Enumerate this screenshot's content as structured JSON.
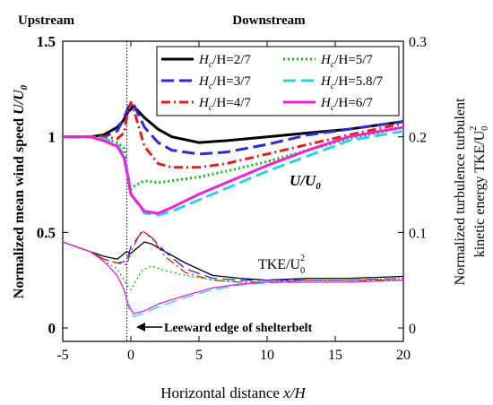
{
  "chart_data": {
    "type": "line",
    "region_labels": {
      "left": "Upstream",
      "right": "Downstream"
    },
    "xlabel": "Horizontal distance",
    "xlabel_var": "x/H",
    "xlim": [
      -5,
      20
    ],
    "xticks": [
      -5,
      0,
      5,
      10,
      15,
      20
    ],
    "ylabel_left": "Normalized mean wind speed",
    "ylabel_left_var": "U/U",
    "ylabel_left_sub": "0",
    "ylim_left": [
      -0.07,
      1.5
    ],
    "yticks_left": [
      0,
      0.5,
      1,
      1.5
    ],
    "ylabel_right_line1": "Normalized turbulence turbulent",
    "ylabel_right_line2": "kinetic energy TKE/U",
    "ylabel_right_sub": "0",
    "ylabel_right_sup": "2",
    "ylim_right": [
      -0.014,
      0.3
    ],
    "yticks_right": [
      0,
      0.1,
      0.2,
      0.3
    ],
    "annotations": {
      "u_label": "U/U",
      "u_label_sub": "0",
      "tke_label": "TKE/U",
      "tke_label_sub": "0",
      "tke_label_sup": "2",
      "edge_label": "Leeward edge of shelterbelt",
      "edge_x": -0.3
    },
    "grid": false,
    "legend_position": "top-right",
    "series": [
      {
        "name": "Hc/H=2/7",
        "name_main": "H",
        "name_sub": "c",
        "name_rest": "/H=2/7",
        "color": "#000000",
        "dash": "solid",
        "u": [
          [
            -5,
            1.0
          ],
          [
            -3,
            1.0
          ],
          [
            -2,
            1.01
          ],
          [
            -1,
            1.05
          ],
          [
            -0.6,
            1.08
          ],
          [
            -0.2,
            1.13
          ],
          [
            0.2,
            1.16
          ],
          [
            1,
            1.1
          ],
          [
            2,
            1.04
          ],
          [
            3,
            1.0
          ],
          [
            5,
            0.97
          ],
          [
            7,
            0.98
          ],
          [
            10,
            1.0
          ],
          [
            13,
            1.02
          ],
          [
            16,
            1.04
          ],
          [
            20,
            1.08
          ]
        ],
        "tke": [
          [
            -5,
            0.09
          ],
          [
            -3,
            0.08
          ],
          [
            -2,
            0.075
          ],
          [
            -1,
            0.072
          ],
          [
            -0.3,
            0.08
          ],
          [
            0,
            0.078
          ],
          [
            1,
            0.09
          ],
          [
            1.5,
            0.088
          ],
          [
            2.5,
            0.08
          ],
          [
            4,
            0.068
          ],
          [
            6,
            0.055
          ],
          [
            8,
            0.052
          ],
          [
            10,
            0.05
          ],
          [
            13,
            0.052
          ],
          [
            16,
            0.052
          ],
          [
            20,
            0.054
          ]
        ]
      },
      {
        "name": "Hc/H=3/7",
        "name_main": "H",
        "name_sub": "c",
        "name_rest": "/H=3/7",
        "color": "#2a2ad8",
        "dash": "long",
        "u": [
          [
            -5,
            1.0
          ],
          [
            -3,
            1.0
          ],
          [
            -2,
            1.0
          ],
          [
            -1,
            1.03
          ],
          [
            -0.5,
            1.1
          ],
          [
            -0.1,
            1.17
          ],
          [
            0.2,
            1.17
          ],
          [
            1,
            1.05
          ],
          [
            2,
            0.97
          ],
          [
            3,
            0.93
          ],
          [
            5,
            0.91
          ],
          [
            7,
            0.92
          ],
          [
            10,
            0.96
          ],
          [
            13,
            1.01
          ],
          [
            16,
            1.04
          ],
          [
            20,
            1.08
          ]
        ],
        "tke": [
          [
            -5,
            0.09
          ],
          [
            -3,
            0.08
          ],
          [
            -2,
            0.072
          ],
          [
            -1,
            0.068
          ],
          [
            -0.3,
            0.07
          ],
          [
            0,
            0.085
          ],
          [
            0.8,
            0.1
          ],
          [
            1.5,
            0.095
          ],
          [
            2.5,
            0.08
          ],
          [
            4,
            0.062
          ],
          [
            6,
            0.052
          ],
          [
            8,
            0.05
          ],
          [
            10,
            0.05
          ],
          [
            13,
            0.05
          ],
          [
            16,
            0.05
          ],
          [
            20,
            0.052
          ]
        ]
      },
      {
        "name": "Hc/H=4/7",
        "name_main": "H",
        "name_sub": "c",
        "name_rest": "/H=4/7",
        "color": "#e02020",
        "dash": "dashdot",
        "u": [
          [
            -5,
            1.0
          ],
          [
            -3,
            1.0
          ],
          [
            -2,
            1.0
          ],
          [
            -1,
            0.99
          ],
          [
            -0.5,
            1.02
          ],
          [
            -0.3,
            1.1
          ],
          [
            0,
            1.18
          ],
          [
            0.3,
            1.12
          ],
          [
            1,
            0.95
          ],
          [
            2,
            0.86
          ],
          [
            3,
            0.84
          ],
          [
            5,
            0.84
          ],
          [
            7,
            0.86
          ],
          [
            10,
            0.91
          ],
          [
            13,
            0.96
          ],
          [
            16,
            1.01
          ],
          [
            20,
            1.07
          ]
        ],
        "tke": [
          [
            -5,
            0.09
          ],
          [
            -3,
            0.08
          ],
          [
            -2,
            0.072
          ],
          [
            -1,
            0.068
          ],
          [
            -0.3,
            0.066
          ],
          [
            0,
            0.08
          ],
          [
            0.8,
            0.102
          ],
          [
            1.5,
            0.095
          ],
          [
            2.5,
            0.075
          ],
          [
            4,
            0.058
          ],
          [
            6,
            0.05
          ],
          [
            8,
            0.048
          ],
          [
            10,
            0.048
          ],
          [
            13,
            0.05
          ],
          [
            16,
            0.05
          ],
          [
            20,
            0.05
          ]
        ]
      },
      {
        "name": "Hc/H=5/7",
        "name_main": "H",
        "name_sub": "c",
        "name_rest": "/H=5/7",
        "color": "#14b814",
        "dash": "dotted",
        "u": [
          [
            -5,
            1.0
          ],
          [
            -3,
            1.0
          ],
          [
            -2,
            0.99
          ],
          [
            -1,
            0.97
          ],
          [
            -0.5,
            0.94
          ],
          [
            -0.3,
            0.85
          ],
          [
            -0.1,
            0.72
          ],
          [
            0.2,
            0.74
          ],
          [
            1,
            0.77
          ],
          [
            2,
            0.76
          ],
          [
            3,
            0.77
          ],
          [
            5,
            0.79
          ],
          [
            7,
            0.82
          ],
          [
            10,
            0.87
          ],
          [
            13,
            0.93
          ],
          [
            16,
            0.99
          ],
          [
            20,
            1.05
          ]
        ],
        "tke": [
          [
            -5,
            0.09
          ],
          [
            -3,
            0.08
          ],
          [
            -2,
            0.07
          ],
          [
            -1,
            0.062
          ],
          [
            -0.3,
            0.045
          ],
          [
            0,
            0.04
          ],
          [
            0.8,
            0.06
          ],
          [
            1.5,
            0.065
          ],
          [
            2.5,
            0.06
          ],
          [
            4,
            0.055
          ],
          [
            6,
            0.05
          ],
          [
            8,
            0.048
          ],
          [
            10,
            0.048
          ],
          [
            13,
            0.05
          ],
          [
            16,
            0.05
          ],
          [
            20,
            0.052
          ]
        ]
      },
      {
        "name": "Hc/H=5.8/7",
        "name_main": "H",
        "name_sub": "c",
        "name_rest": "/H=5.8/7",
        "color": "#30cfe6",
        "dash": "long",
        "u": [
          [
            -5,
            1.0
          ],
          [
            -3,
            1.0
          ],
          [
            -2,
            0.99
          ],
          [
            -1,
            0.96
          ],
          [
            -0.5,
            0.9
          ],
          [
            -0.2,
            0.8
          ],
          [
            0,
            0.7
          ],
          [
            1,
            0.6
          ],
          [
            2,
            0.59
          ],
          [
            3,
            0.61
          ],
          [
            5,
            0.67
          ],
          [
            7,
            0.73
          ],
          [
            10,
            0.82
          ],
          [
            13,
            0.9
          ],
          [
            16,
            0.98
          ],
          [
            20,
            1.03
          ]
        ],
        "tke": [
          [
            -5,
            0.09
          ],
          [
            -3,
            0.08
          ],
          [
            -2,
            0.07
          ],
          [
            -1,
            0.055
          ],
          [
            -0.5,
            0.04
          ],
          [
            -0.2,
            0.022
          ],
          [
            0.2,
            0.012
          ],
          [
            1,
            0.016
          ],
          [
            2,
            0.022
          ],
          [
            4,
            0.032
          ],
          [
            6,
            0.04
          ],
          [
            8,
            0.045
          ],
          [
            10,
            0.047
          ],
          [
            13,
            0.048
          ],
          [
            16,
            0.048
          ],
          [
            20,
            0.05
          ]
        ]
      },
      {
        "name": "Hc/H=6/7",
        "name_main": "H",
        "name_sub": "c",
        "name_rest": "/H=6/7",
        "color": "#ee22d6",
        "dash": "solid",
        "u": [
          [
            -5,
            1.0
          ],
          [
            -3,
            1.0
          ],
          [
            -2,
            0.98
          ],
          [
            -1,
            0.95
          ],
          [
            -0.5,
            0.89
          ],
          [
            -0.2,
            0.78
          ],
          [
            0,
            0.7
          ],
          [
            1,
            0.61
          ],
          [
            2,
            0.6
          ],
          [
            3,
            0.63
          ],
          [
            5,
            0.7
          ],
          [
            7,
            0.76
          ],
          [
            10,
            0.85
          ],
          [
            13,
            0.93
          ],
          [
            16,
            1.0
          ],
          [
            20,
            1.05
          ]
        ],
        "tke": [
          [
            -5,
            0.09
          ],
          [
            -3,
            0.08
          ],
          [
            -2,
            0.07
          ],
          [
            -1,
            0.055
          ],
          [
            -0.5,
            0.04
          ],
          [
            -0.2,
            0.025
          ],
          [
            0.2,
            0.015
          ],
          [
            1,
            0.018
          ],
          [
            2,
            0.025
          ],
          [
            4,
            0.034
          ],
          [
            6,
            0.042
          ],
          [
            8,
            0.046
          ],
          [
            10,
            0.048
          ],
          [
            13,
            0.048
          ],
          [
            16,
            0.048
          ],
          [
            20,
            0.05
          ]
        ]
      }
    ]
  }
}
